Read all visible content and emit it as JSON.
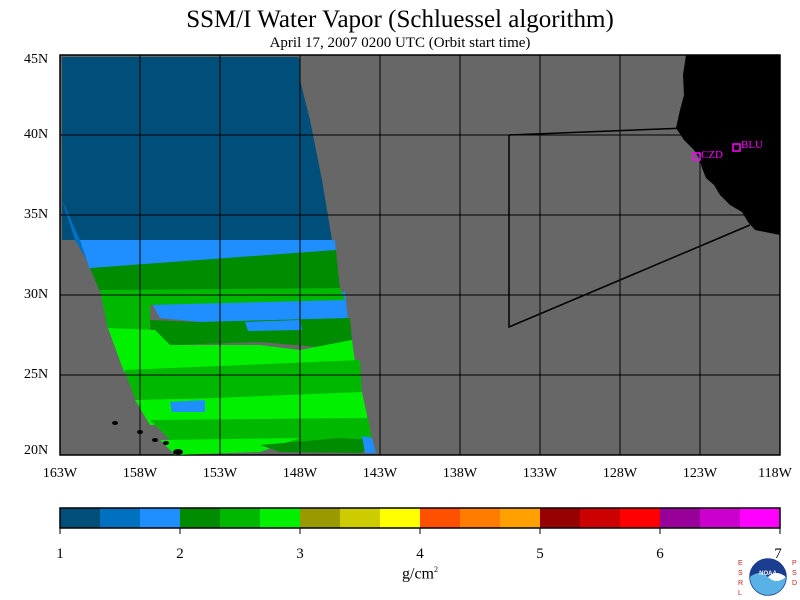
{
  "title": "SSM/I Water Vapor (Schluessel algorithm)",
  "subtitle": "April 17, 2007  0200 UTC  (Orbit start time)",
  "latitude_labels": [
    "45N",
    "40N",
    "35N",
    "30N",
    "25N",
    "20N"
  ],
  "latitude_values": [
    45,
    40,
    35,
    30,
    25,
    20
  ],
  "longitude_labels": [
    "163W",
    "158W",
    "153W",
    "148W",
    "143W",
    "138W",
    "133W",
    "128W",
    "123W",
    "118W"
  ],
  "longitude_values": [
    -163,
    -158,
    -153,
    -148,
    -143,
    -138,
    -133,
    -128,
    -123,
    -118
  ],
  "stations": [
    {
      "label": "CZD"
    },
    {
      "label": "BLU"
    }
  ],
  "colorbar": {
    "ticks": [
      "1",
      "2",
      "3",
      "4",
      "5",
      "6",
      "7"
    ],
    "units": "g/cm",
    "units_sup": "2",
    "colors": [
      "#004f7a",
      "#0070c0",
      "#1f8fff",
      "#008c00",
      "#00b800",
      "#00f000",
      "#999900",
      "#cccc00",
      "#ffff00",
      "#ff5000",
      "#ff7c00",
      "#ffa000",
      "#960000",
      "#cc0000",
      "#ff0000",
      "#990099",
      "#cc00cc",
      "#ff00ff"
    ]
  },
  "colors": {
    "no_data": "#676767",
    "land": "#000000",
    "station": "#ff00ff"
  },
  "logo_text": "ESRL PSD NOAA"
}
